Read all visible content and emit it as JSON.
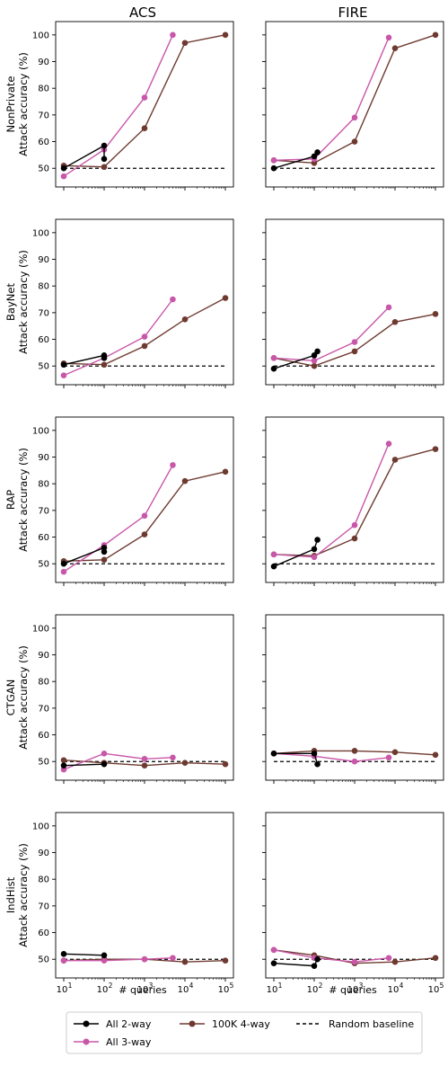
{
  "columns": [
    "ACS",
    "FIRE"
  ],
  "rows": [
    "NonPrivate",
    "BayNet",
    "RAP",
    "CTGAN",
    "IndHist"
  ],
  "ylabel_suffix": "Attack accuracy (%)",
  "xlabel": "# queries",
  "yticks": [
    "50",
    "60",
    "70",
    "80",
    "90",
    "100"
  ],
  "xticks": [
    {
      "base": "10",
      "exp": "1"
    },
    {
      "base": "10",
      "exp": "2"
    },
    {
      "base": "10",
      "exp": "3"
    },
    {
      "base": "10",
      "exp": "4"
    },
    {
      "base": "10",
      "exp": "5"
    }
  ],
  "legend": {
    "all2": "All 2-way",
    "all3": "All 3-way",
    "k4": "100K 4-way",
    "baseline": "Random baseline"
  },
  "colors": {
    "all2": "#000000",
    "all3": "#c957a9",
    "k4": "#6e3a30",
    "baseline": "#000000"
  },
  "chart_data": [
    {
      "type": "line",
      "row": "NonPrivate",
      "col": "ACS",
      "xscale": "log",
      "ylim": [
        43,
        105
      ],
      "xlim": [
        10,
        100000
      ],
      "baseline": 50,
      "series": [
        {
          "name": "All 2-way",
          "x": [
            10,
            100,
            100
          ],
          "y": [
            50,
            58.5,
            53.5
          ]
        },
        {
          "name": "All 3-way",
          "x": [
            10,
            100,
            1000,
            5000
          ],
          "y": [
            47,
            57,
            76.5,
            100
          ]
        },
        {
          "name": "100K 4-way",
          "x": [
            10,
            100,
            1000,
            10000,
            100000
          ],
          "y": [
            51,
            50.5,
            65,
            97,
            100
          ]
        }
      ]
    },
    {
      "type": "line",
      "row": "NonPrivate",
      "col": "FIRE",
      "xscale": "log",
      "ylim": [
        43,
        105
      ],
      "xlim": [
        10,
        100000
      ],
      "baseline": 50,
      "series": [
        {
          "name": "All 2-way",
          "x": [
            10,
            100,
            120
          ],
          "y": [
            50,
            54.5,
            56
          ]
        },
        {
          "name": "All 3-way",
          "x": [
            10,
            100,
            1000,
            7000
          ],
          "y": [
            53,
            53.5,
            69,
            99
          ]
        },
        {
          "name": "100K 4-way",
          "x": [
            10,
            100,
            1000,
            10000,
            100000
          ],
          "y": [
            53,
            52,
            60,
            95,
            100
          ]
        }
      ]
    },
    {
      "type": "line",
      "row": "BayNet",
      "col": "ACS",
      "xscale": "log",
      "ylim": [
        43,
        105
      ],
      "xlim": [
        10,
        100000
      ],
      "baseline": 50,
      "series": [
        {
          "name": "All 2-way",
          "x": [
            10,
            100,
            100
          ],
          "y": [
            50.5,
            54,
            53
          ]
        },
        {
          "name": "All 3-way",
          "x": [
            10,
            100,
            1000,
            5000
          ],
          "y": [
            46.5,
            53,
            61,
            75
          ]
        },
        {
          "name": "100K 4-way",
          "x": [
            10,
            100,
            1000,
            10000,
            100000
          ],
          "y": [
            51,
            50.5,
            57.5,
            67.5,
            75.5
          ]
        }
      ]
    },
    {
      "type": "line",
      "row": "BayNet",
      "col": "FIRE",
      "xscale": "log",
      "ylim": [
        43,
        105
      ],
      "xlim": [
        10,
        100000
      ],
      "baseline": 50,
      "series": [
        {
          "name": "All 2-way",
          "x": [
            10,
            100,
            120
          ],
          "y": [
            49,
            54,
            55.5
          ]
        },
        {
          "name": "All 3-way",
          "x": [
            10,
            100,
            1000,
            7000
          ],
          "y": [
            53,
            52,
            59,
            72
          ]
        },
        {
          "name": "100K 4-way",
          "x": [
            10,
            100,
            1000,
            10000,
            100000
          ],
          "y": [
            53,
            50,
            55.5,
            66.5,
            69.5
          ]
        }
      ]
    },
    {
      "type": "line",
      "row": "RAP",
      "col": "ACS",
      "xscale": "log",
      "ylim": [
        43,
        105
      ],
      "xlim": [
        10,
        100000
      ],
      "baseline": 50,
      "series": [
        {
          "name": "All 2-way",
          "x": [
            10,
            100,
            100
          ],
          "y": [
            50,
            56,
            54.5
          ]
        },
        {
          "name": "All 3-way",
          "x": [
            10,
            100,
            1000,
            5000
          ],
          "y": [
            47,
            57,
            68,
            87
          ]
        },
        {
          "name": "100K 4-way",
          "x": [
            10,
            100,
            1000,
            10000,
            100000
          ],
          "y": [
            51,
            51.5,
            61,
            81,
            84.5
          ]
        }
      ]
    },
    {
      "type": "line",
      "row": "RAP",
      "col": "FIRE",
      "xscale": "log",
      "ylim": [
        43,
        105
      ],
      "xlim": [
        10,
        100000
      ],
      "baseline": 50,
      "series": [
        {
          "name": "All 2-way",
          "x": [
            10,
            100,
            120
          ],
          "y": [
            49,
            55.5,
            59
          ]
        },
        {
          "name": "All 3-way",
          "x": [
            10,
            100,
            1000,
            7000
          ],
          "y": [
            53.5,
            52.5,
            64.5,
            95
          ]
        },
        {
          "name": "100K 4-way",
          "x": [
            10,
            100,
            1000,
            10000,
            100000
          ],
          "y": [
            53.5,
            53,
            59.5,
            89,
            93
          ]
        }
      ]
    },
    {
      "type": "line",
      "row": "CTGAN",
      "col": "ACS",
      "xscale": "log",
      "ylim": [
        43,
        105
      ],
      "xlim": [
        10,
        100000
      ],
      "baseline": 50,
      "series": [
        {
          "name": "All 2-way",
          "x": [
            10,
            100
          ],
          "y": [
            48.5,
            49
          ]
        },
        {
          "name": "All 3-way",
          "x": [
            10,
            100,
            1000,
            5000
          ],
          "y": [
            47,
            53,
            51,
            51.5
          ]
        },
        {
          "name": "100K 4-way",
          "x": [
            10,
            100,
            1000,
            10000,
            100000
          ],
          "y": [
            50.5,
            49.5,
            48.5,
            49.5,
            49
          ]
        }
      ]
    },
    {
      "type": "line",
      "row": "CTGAN",
      "col": "FIRE",
      "xscale": "log",
      "ylim": [
        43,
        105
      ],
      "xlim": [
        10,
        100000
      ],
      "baseline": 50,
      "series": [
        {
          "name": "All 2-way",
          "x": [
            10,
            100,
            120
          ],
          "y": [
            53,
            53,
            49
          ]
        },
        {
          "name": "All 3-way",
          "x": [
            10,
            100,
            1000,
            7000
          ],
          "y": [
            53,
            52,
            50,
            51.5
          ]
        },
        {
          "name": "100K 4-way",
          "x": [
            10,
            100,
            1000,
            10000,
            100000
          ],
          "y": [
            53,
            54,
            54,
            53.5,
            52.5
          ]
        }
      ]
    },
    {
      "type": "line",
      "row": "IndHist",
      "col": "ACS",
      "xscale": "log",
      "ylim": [
        43,
        105
      ],
      "xlim": [
        10,
        100000
      ],
      "baseline": 50,
      "series": [
        {
          "name": "All 2-way",
          "x": [
            10,
            100
          ],
          "y": [
            52,
            51.5
          ]
        },
        {
          "name": "All 3-way",
          "x": [
            10,
            100,
            1000,
            5000
          ],
          "y": [
            49.5,
            49.5,
            50,
            50.5
          ]
        },
        {
          "name": "100K 4-way",
          "x": [
            10,
            100,
            1000,
            10000,
            100000
          ],
          "y": [
            49.5,
            50,
            50,
            49,
            49.5
          ]
        }
      ]
    },
    {
      "type": "line",
      "row": "IndHist",
      "col": "FIRE",
      "xscale": "log",
      "ylim": [
        43,
        105
      ],
      "xlim": [
        10,
        100000
      ],
      "baseline": 50,
      "series": [
        {
          "name": "All 2-way",
          "x": [
            10,
            100,
            120
          ],
          "y": [
            48.5,
            47.5,
            50
          ]
        },
        {
          "name": "All 3-way",
          "x": [
            10,
            100,
            1000,
            7000
          ],
          "y": [
            53.5,
            50.5,
            49,
            50.5
          ]
        },
        {
          "name": "100K 4-way",
          "x": [
            10,
            100,
            1000,
            10000,
            100000
          ],
          "y": [
            53.5,
            51.5,
            48.5,
            49,
            50.5
          ]
        }
      ]
    }
  ]
}
